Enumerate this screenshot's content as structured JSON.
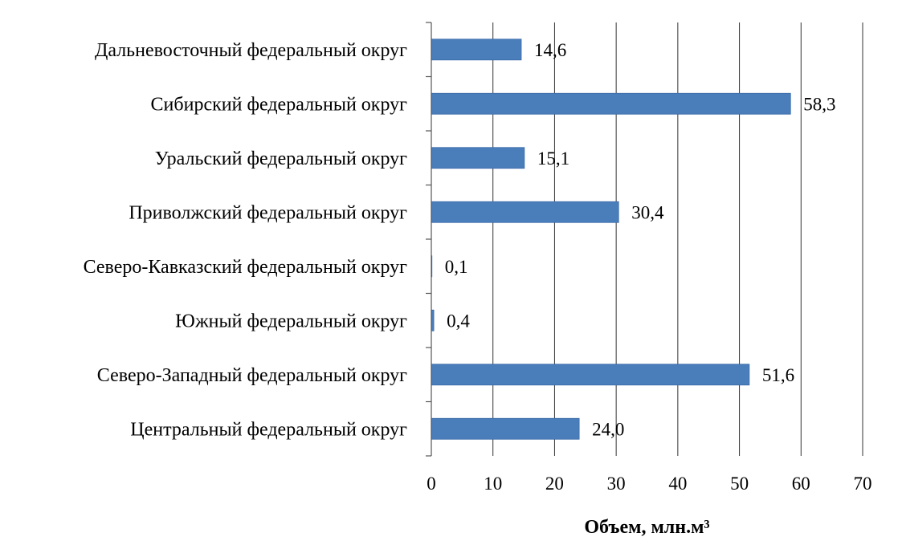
{
  "chart_data": {
    "type": "bar",
    "orientation": "horizontal",
    "categories": [
      "Дальневосточный федеральный округ",
      "Сибирский федеральный округ",
      "Уральский федеральный округ",
      "Приволжский федеральный округ",
      "Северо-Кавказский федеральный округ",
      "Южный федеральный округ",
      "Северо-Западный федеральный округ",
      "Центральный федеральный округ"
    ],
    "values": [
      14.6,
      58.3,
      15.1,
      30.4,
      0.1,
      0.4,
      51.6,
      24.0
    ],
    "data_labels": [
      "14,6",
      "58,3",
      "15,1",
      "30,4",
      "0,1",
      "0,4",
      "51,6",
      "24,0"
    ],
    "xlim": [
      0,
      70
    ],
    "xticks": [
      0,
      10,
      20,
      30,
      40,
      50,
      60,
      70
    ],
    "xlabel": "Объем, млн.м³",
    "title": "",
    "grid": "vertical",
    "legend": "none",
    "bar_color": "#4a7ebb",
    "bar_edge_color": "#3a6aa8",
    "grid_color": "#333333"
  }
}
